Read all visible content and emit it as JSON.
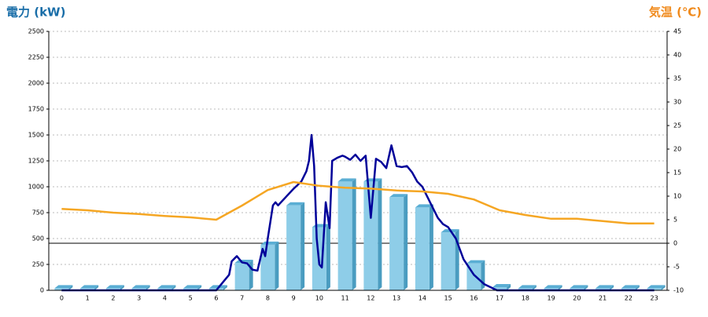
{
  "chart_data": {
    "type": "bar",
    "y_title": "電力 (kW)",
    "y2_title": "気温 (℃)",
    "categories": [
      "0",
      "1",
      "2",
      "3",
      "4",
      "5",
      "6",
      "7",
      "8",
      "9",
      "10",
      "11",
      "12",
      "13",
      "14",
      "15",
      "16",
      "17",
      "18",
      "19",
      "20",
      "21",
      "22",
      "23"
    ],
    "series": [
      {
        "type": "bar",
        "color": "#8ecde8",
        "values": [
          20,
          20,
          20,
          20,
          20,
          20,
          20,
          265,
          440,
          820,
          610,
          1050,
          1050,
          900,
          800,
          560,
          260,
          30,
          20,
          20,
          20,
          20,
          20,
          20
        ]
      },
      {
        "type": "line",
        "color": "#000099",
        "x": [
          0,
          6.0,
          6.2,
          6.5,
          6.6,
          6.8,
          7.0,
          7.2,
          7.4,
          7.6,
          7.8,
          7.9,
          8.0,
          8.2,
          8.3,
          8.4,
          8.7,
          9.0,
          9.3,
          9.5,
          9.6,
          9.7,
          9.8,
          9.9,
          10.0,
          10.1,
          10.25,
          10.4,
          10.5,
          10.7,
          10.9,
          11.0,
          11.2,
          11.4,
          11.6,
          11.8,
          12.0,
          12.2,
          12.4,
          12.6,
          12.8,
          13.0,
          13.2,
          13.4,
          13.6,
          13.8,
          14.0,
          14.2,
          14.4,
          14.6,
          14.8,
          15.0,
          15.3,
          15.6,
          16.0,
          16.4,
          16.9,
          23
        ],
        "values": [
          0,
          0,
          60,
          150,
          280,
          330,
          270,
          260,
          200,
          190,
          400,
          330,
          500,
          820,
          850,
          820,
          900,
          980,
          1050,
          1150,
          1250,
          1500,
          1200,
          500,
          250,
          220,
          850,
          600,
          1250,
          1280,
          1300,
          1290,
          1260,
          1310,
          1250,
          1300,
          700,
          1270,
          1240,
          1180,
          1400,
          1200,
          1190,
          1200,
          1140,
          1050,
          1000,
          900,
          800,
          700,
          640,
          610,
          500,
          300,
          150,
          60,
          0,
          0
        ]
      },
      {
        "type": "line",
        "axis": "y2",
        "color": "#f5a623",
        "values": [
          7.3,
          7.0,
          6.5,
          6.2,
          5.8,
          5.5,
          5.0,
          8.0,
          11.3,
          13.0,
          12.2,
          11.8,
          11.6,
          11.2,
          11.0,
          10.5,
          9.3,
          7.0,
          6.0,
          5.2,
          5.2,
          4.7,
          4.2,
          4.2
        ]
      }
    ],
    "ylim": [
      0,
      2500
    ],
    "yticks": [
      0,
      250,
      500,
      750,
      1000,
      1250,
      1500,
      1750,
      2000,
      2250,
      2500
    ],
    "y2lim": [
      -10,
      45
    ],
    "y2ticks": [
      -10,
      -5,
      0,
      5,
      10,
      15,
      20,
      25,
      30,
      35,
      40,
      45
    ],
    "grid": true
  }
}
